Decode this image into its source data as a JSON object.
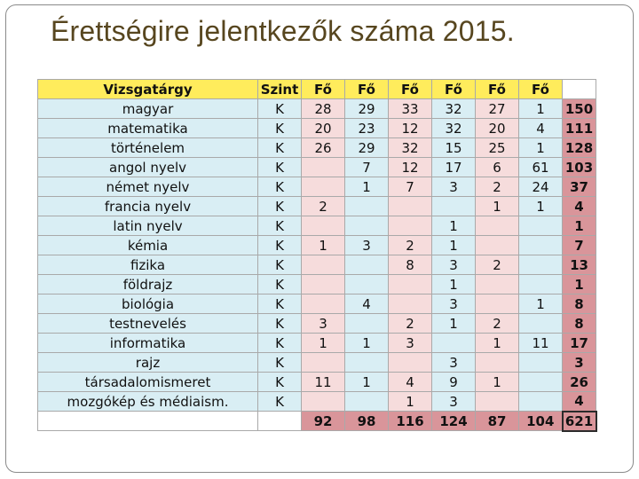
{
  "title": "Érettségire jelentkezők száma 2015.",
  "table": {
    "headers": [
      "Vizsgatárgy",
      "Szint",
      "Fő",
      "Fő",
      "Fő",
      "Fő",
      "Fő",
      "Fő",
      ""
    ],
    "rows": [
      {
        "subject": "magyar",
        "level": "K",
        "values": [
          "28",
          "29",
          "33",
          "32",
          "27",
          "1"
        ],
        "sum": "150"
      },
      {
        "subject": "matematika",
        "level": "K",
        "values": [
          "20",
          "23",
          "12",
          "32",
          "20",
          "4"
        ],
        "sum": "111"
      },
      {
        "subject": "történelem",
        "level": "K",
        "values": [
          "26",
          "29",
          "32",
          "15",
          "25",
          "1"
        ],
        "sum": "128"
      },
      {
        "subject": "angol nyelv",
        "level": "K",
        "values": [
          "",
          "7",
          "12",
          "17",
          "6",
          "61"
        ],
        "sum": "103"
      },
      {
        "subject": "német nyelv",
        "level": "K",
        "values": [
          "",
          "1",
          "7",
          "3",
          "2",
          "24"
        ],
        "sum": "37"
      },
      {
        "subject": "francia nyelv",
        "level": "K",
        "values": [
          "2",
          "",
          "",
          "",
          "1",
          "1"
        ],
        "sum": "4"
      },
      {
        "subject": "latin nyelv",
        "level": "K",
        "values": [
          "",
          "",
          "",
          "1",
          "",
          ""
        ],
        "sum": "1"
      },
      {
        "subject": "kémia",
        "level": "K",
        "values": [
          "1",
          "3",
          "2",
          "1",
          "",
          ""
        ],
        "sum": "7"
      },
      {
        "subject": "fizika",
        "level": "K",
        "values": [
          "",
          "",
          "8",
          "3",
          "2",
          ""
        ],
        "sum": "13"
      },
      {
        "subject": "földrajz",
        "level": "K",
        "values": [
          "",
          "",
          "",
          "1",
          "",
          ""
        ],
        "sum": "1"
      },
      {
        "subject": "biológia",
        "level": "K",
        "values": [
          "",
          "4",
          "",
          "3",
          "",
          "1"
        ],
        "sum": "8"
      },
      {
        "subject": "testnevelés",
        "level": "K",
        "values": [
          "3",
          "",
          "2",
          "1",
          "2",
          ""
        ],
        "sum": "8"
      },
      {
        "subject": "informatika",
        "level": "K",
        "values": [
          "1",
          "1",
          "3",
          "",
          "1",
          "11"
        ],
        "sum": "17"
      },
      {
        "subject": "rajz",
        "level": "K",
        "values": [
          "",
          "",
          "",
          "3",
          "",
          ""
        ],
        "sum": "3"
      },
      {
        "subject": "társadalomismeret",
        "level": "K",
        "values": [
          "11",
          "1",
          "4",
          "9",
          "1",
          ""
        ],
        "sum": "26"
      },
      {
        "subject": "mozgókép és médiaism.",
        "level": "K",
        "values": [
          "",
          "",
          "1",
          "3",
          "",
          ""
        ],
        "sum": "4"
      }
    ],
    "totals": [
      "92",
      "98",
      "116",
      "124",
      "87",
      "104"
    ],
    "grand_total": "621"
  },
  "colors": {
    "header_bg": "#ffec5c",
    "blue_cell": "#d9eef4",
    "pink_cell": "#f6dcdc",
    "sum_cell": "#d9959a",
    "title_color": "#57461f"
  }
}
